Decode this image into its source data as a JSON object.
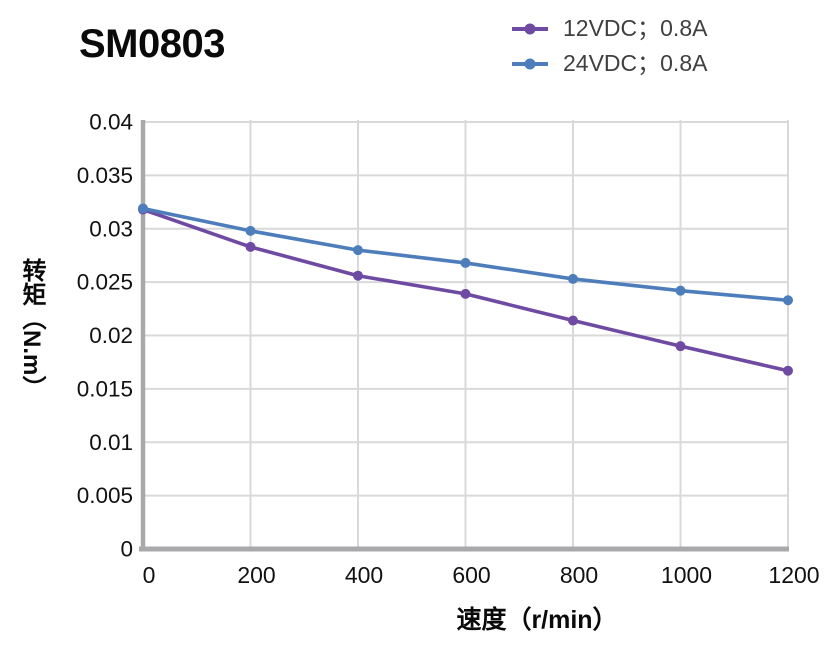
{
  "title": "SM0803",
  "axes": {
    "x_title": "速度（r/min）",
    "y_title": "转矩（N.m）"
  },
  "chart_data": {
    "type": "line",
    "title": "SM0803",
    "xlabel": "速度（r/min）",
    "ylabel": "转矩（N.m）",
    "x": [
      0,
      200,
      400,
      600,
      800,
      1000,
      1200
    ],
    "series": [
      {
        "name": "12VDC；0.8A",
        "color": "#6F4AA2",
        "values": [
          0.0318,
          0.0283,
          0.0256,
          0.0239,
          0.0214,
          0.019,
          0.0167
        ]
      },
      {
        "name": "24VDC；0.8A",
        "color": "#4D7EBB",
        "values": [
          0.0319,
          0.0298,
          0.028,
          0.0268,
          0.0253,
          0.0242,
          0.0233
        ]
      }
    ],
    "xlim": [
      0,
      1200
    ],
    "ylim": [
      0,
      0.04
    ],
    "x_ticks": [
      0,
      200,
      400,
      600,
      800,
      1000,
      1200
    ],
    "y_ticks": [
      0,
      0.005,
      0.01,
      0.015,
      0.02,
      0.025,
      0.03,
      0.035,
      0.04
    ],
    "grid": true,
    "legend_position": "top-right",
    "marker": "circle",
    "style": {
      "gridline_color": "#D9D9DB",
      "axis_color": "#A9A9AB",
      "tick_label_color": "#111111",
      "legend_text_color": "#404040",
      "line_width": 3.6,
      "marker_radius": 5
    }
  }
}
